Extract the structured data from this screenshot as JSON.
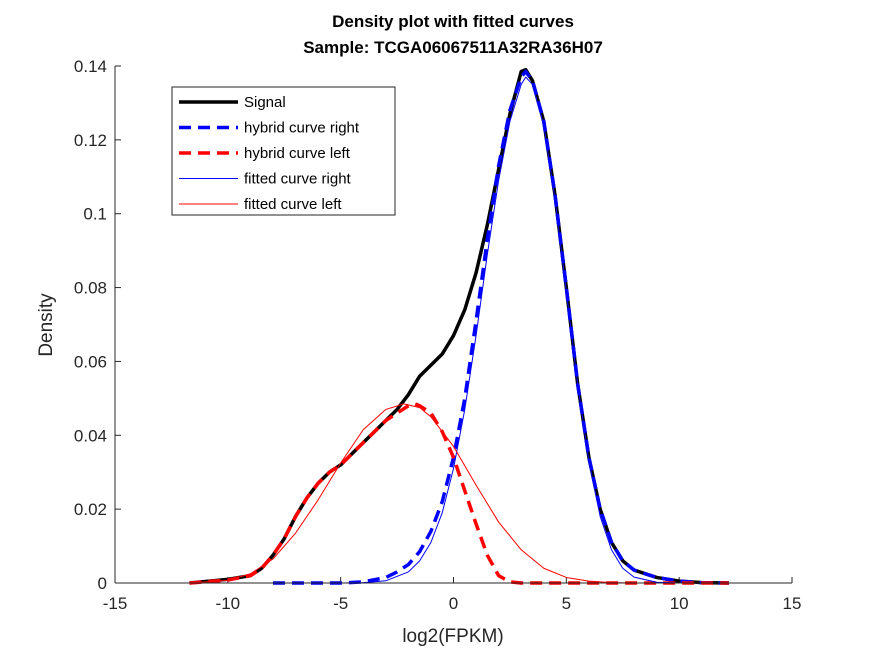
{
  "chart_data": {
    "type": "line",
    "title": "Density plot with fitted curves",
    "subtitle": "Sample: TCGA06067511A32RA36H07",
    "xlabel": "log2(FPKM)",
    "ylabel": "Density",
    "xlim": [
      -15,
      15
    ],
    "ylim": [
      0,
      0.14
    ],
    "x_ticks": [
      "-15",
      "-10",
      "-5",
      "0",
      "5",
      "10",
      "15"
    ],
    "y_ticks": [
      "0",
      "0.02",
      "0.04",
      "0.06",
      "0.08",
      "0.1",
      "0.12",
      "0.14"
    ],
    "grid": false,
    "legend": "top-left",
    "series": [
      {
        "name": "Signal",
        "color": "#000000",
        "style": "solid-thick",
        "points": [
          [
            -11.7,
            0
          ],
          [
            -10,
            0.001
          ],
          [
            -9,
            0.002
          ],
          [
            -8.5,
            0.004
          ],
          [
            -8,
            0.0075
          ],
          [
            -7.5,
            0.012
          ],
          [
            -7,
            0.018
          ],
          [
            -6.5,
            0.023
          ],
          [
            -6,
            0.027
          ],
          [
            -5.5,
            0.03
          ],
          [
            -5,
            0.032
          ],
          [
            -4.5,
            0.035
          ],
          [
            -4,
            0.038
          ],
          [
            -3.5,
            0.041
          ],
          [
            -3,
            0.044
          ],
          [
            -2.5,
            0.047
          ],
          [
            -2,
            0.051
          ],
          [
            -1.5,
            0.056
          ],
          [
            -1,
            0.059
          ],
          [
            -0.5,
            0.062
          ],
          [
            0,
            0.067
          ],
          [
            0.5,
            0.074
          ],
          [
            1,
            0.084
          ],
          [
            1.5,
            0.097
          ],
          [
            2,
            0.112
          ],
          [
            2.5,
            0.127
          ],
          [
            3,
            0.1385
          ],
          [
            3.2,
            0.139
          ],
          [
            3.5,
            0.136
          ],
          [
            4,
            0.125
          ],
          [
            4.5,
            0.105
          ],
          [
            5,
            0.08
          ],
          [
            5.5,
            0.054
          ],
          [
            6,
            0.034
          ],
          [
            6.5,
            0.02
          ],
          [
            7,
            0.011
          ],
          [
            7.5,
            0.006
          ],
          [
            8,
            0.0035
          ],
          [
            9,
            0.0015
          ],
          [
            10,
            0.0005
          ],
          [
            11,
            0.0001
          ],
          [
            12.2,
            0
          ]
        ]
      },
      {
        "name": "hybrid curve right",
        "color": "#0000ff",
        "style": "dashed-thick",
        "points": [
          [
            -8,
            0
          ],
          [
            -5,
            0
          ],
          [
            -4,
            0.0003
          ],
          [
            -3,
            0.0015
          ],
          [
            -2.5,
            0.003
          ],
          [
            -2,
            0.005
          ],
          [
            -1.5,
            0.0085
          ],
          [
            -1,
            0.014
          ],
          [
            -0.5,
            0.022
          ],
          [
            0,
            0.034
          ],
          [
            0.5,
            0.05
          ],
          [
            1,
            0.071
          ],
          [
            1.5,
            0.093
          ],
          [
            2,
            0.113
          ],
          [
            2.5,
            0.128
          ],
          [
            3,
            0.137
          ],
          [
            3.2,
            0.1385
          ],
          [
            3.5,
            0.136
          ],
          [
            4,
            0.125
          ],
          [
            4.5,
            0.105
          ],
          [
            5,
            0.08
          ],
          [
            5.5,
            0.054
          ],
          [
            6,
            0.034
          ],
          [
            6.5,
            0.02
          ],
          [
            7,
            0.011
          ],
          [
            7.5,
            0.006
          ],
          [
            8,
            0.0035
          ],
          [
            9,
            0.0015
          ],
          [
            10,
            0.0005
          ],
          [
            11,
            0.0001
          ],
          [
            12.2,
            0
          ]
        ]
      },
      {
        "name": "hybrid curve left",
        "color": "#ff0000",
        "style": "dashed-thick",
        "points": [
          [
            -11.7,
            0
          ],
          [
            -10,
            0.0008
          ],
          [
            -9,
            0.002
          ],
          [
            -8.5,
            0.004
          ],
          [
            -8,
            0.0075
          ],
          [
            -7.5,
            0.012
          ],
          [
            -7,
            0.018
          ],
          [
            -6.5,
            0.023
          ],
          [
            -6,
            0.027
          ],
          [
            -5.5,
            0.03
          ],
          [
            -5,
            0.032
          ],
          [
            -4.5,
            0.035
          ],
          [
            -4,
            0.038
          ],
          [
            -3.5,
            0.041
          ],
          [
            -3,
            0.044
          ],
          [
            -2.5,
            0.046
          ],
          [
            -2,
            0.048
          ],
          [
            -1.7,
            0.0485
          ],
          [
            -1.5,
            0.048
          ],
          [
            -1,
            0.046
          ],
          [
            -0.5,
            0.041
          ],
          [
            0,
            0.034
          ],
          [
            0.5,
            0.025
          ],
          [
            1,
            0.016
          ],
          [
            1.5,
            0.0075
          ],
          [
            2,
            0.002
          ],
          [
            2.5,
            0.0003
          ],
          [
            3,
            0
          ],
          [
            8,
            0
          ],
          [
            12.2,
            0
          ]
        ]
      },
      {
        "name": "fitted curve right",
        "color": "#0000ff",
        "style": "solid-thin",
        "points": [
          [
            -8,
            0
          ],
          [
            -5,
            0
          ],
          [
            -4,
            0.0001
          ],
          [
            -3,
            0.0006
          ],
          [
            -2,
            0.003
          ],
          [
            -1.5,
            0.006
          ],
          [
            -1,
            0.011
          ],
          [
            -0.5,
            0.019
          ],
          [
            0,
            0.031
          ],
          [
            0.5,
            0.047
          ],
          [
            1,
            0.067
          ],
          [
            1.5,
            0.089
          ],
          [
            2,
            0.109
          ],
          [
            2.5,
            0.125
          ],
          [
            3,
            0.135
          ],
          [
            3.2,
            0.137
          ],
          [
            3.5,
            0.135
          ],
          [
            4,
            0.124
          ],
          [
            4.5,
            0.104
          ],
          [
            5,
            0.079
          ],
          [
            5.5,
            0.054
          ],
          [
            6,
            0.033
          ],
          [
            6.5,
            0.018
          ],
          [
            7,
            0.009
          ],
          [
            7.5,
            0.004
          ],
          [
            8,
            0.0016
          ],
          [
            9,
            0.0002
          ],
          [
            10,
            0
          ],
          [
            12.2,
            0
          ]
        ]
      },
      {
        "name": "fitted curve left",
        "color": "#ff0000",
        "style": "solid-thin",
        "points": [
          [
            -11.7,
            0
          ],
          [
            -10,
            0.0007
          ],
          [
            -9,
            0.0025
          ],
          [
            -8,
            0.0065
          ],
          [
            -7,
            0.0135
          ],
          [
            -6,
            0.0225
          ],
          [
            -5,
            0.0325
          ],
          [
            -4,
            0.0415
          ],
          [
            -3,
            0.047
          ],
          [
            -2.2,
            0.0485
          ],
          [
            -1.5,
            0.0475
          ],
          [
            -1,
            0.045
          ],
          [
            0,
            0.037
          ],
          [
            1,
            0.0265
          ],
          [
            2,
            0.0165
          ],
          [
            3,
            0.009
          ],
          [
            4,
            0.004
          ],
          [
            5,
            0.0015
          ],
          [
            6,
            0.0005
          ],
          [
            7,
            0.0001
          ],
          [
            8,
            0
          ],
          [
            12.2,
            0
          ]
        ]
      }
    ]
  }
}
